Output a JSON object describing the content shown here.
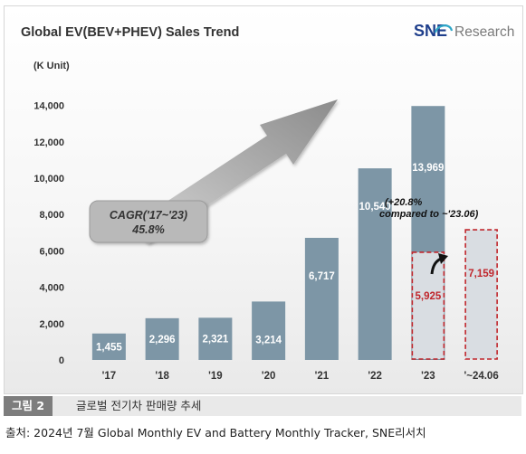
{
  "chart_data": {
    "type": "bar",
    "title": "Global EV(BEV+PHEV)  Sales Trend",
    "unit_label": "(K Unit)",
    "categories": [
      "'17",
      "'18",
      "'19",
      "'20",
      "'21",
      "'22",
      "'23",
      "'~24.06"
    ],
    "series": [
      {
        "values": [
          1455,
          2296,
          2321,
          3214,
          6717,
          10540,
          13969,
          null
        ]
      },
      {
        "values": [
          null,
          null,
          null,
          null,
          null,
          null,
          5925,
          7159
        ]
      }
    ],
    "data_labels": [
      [
        "1,455",
        "2,296",
        "2,321",
        "3,214",
        "6,717",
        "10,540",
        "13,969",
        ""
      ],
      [
        "",
        "",
        "",
        "",
        "",
        "",
        "5,925",
        "7,159"
      ]
    ],
    "y_ticks": [
      0,
      2000,
      4000,
      6000,
      8000,
      10000,
      12000,
      14000
    ],
    "y_tick_labels": [
      "0",
      "2,000",
      "4,000",
      "6,000",
      "8,000",
      "10,000",
      "12,000",
      "14,000"
    ],
    "ylim": [
      0,
      14500
    ],
    "grid": false,
    "annotations": {
      "cagr_line1": "CAGR('17~'23)",
      "cagr_line2": "45.8%",
      "growth_line1": "(+20.8%",
      "growth_line2": "compared to ~'23.06)"
    },
    "colors": {
      "bar": "#7d96a6",
      "partial_fill": "#d9dde2",
      "partial_border": "#c0262c",
      "arrow": "#9c9c9c"
    }
  },
  "brand": {
    "logo_text": "SNE",
    "logo_suffix": "Research"
  },
  "caption": {
    "badge": "그림 2",
    "text": "글로벌 전기차 판매량 추세"
  },
  "source": "출처: 2024년 7월 Global Monthly EV and Battery Monthly Tracker, SNE리서치"
}
